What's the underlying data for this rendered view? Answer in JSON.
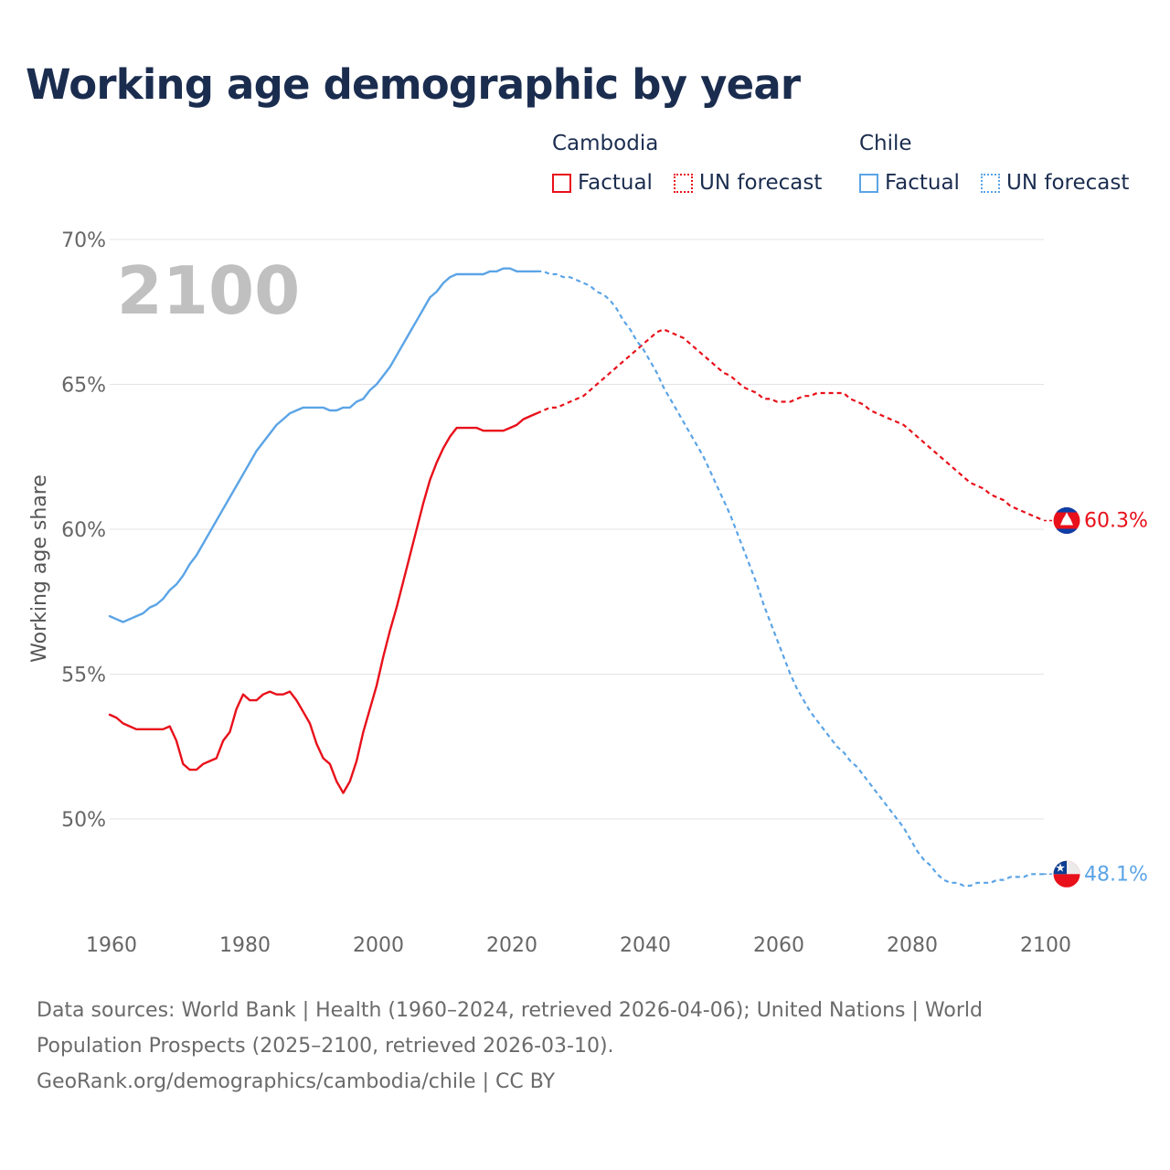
{
  "title": "Working age demographic by year",
  "legend": {
    "groups": [
      {
        "country": "Cambodia",
        "factual_label": "Factual",
        "forecast_label": "UN forecast",
        "color": "#e8101a"
      },
      {
        "country": "Chile",
        "factual_label": "Factual",
        "forecast_label": "UN forecast",
        "color": "#5ba4e6"
      }
    ]
  },
  "year_watermark": "2100",
  "source": {
    "line1": "Data sources: World Bank | Health (1960–2024, retrieved 2026-04-06); United Nations | World",
    "line2": "Population Prospects (2025–2100, retrieved 2026-03-10).",
    "line3": "GeoRank.org/demographics/cambodia/chile | CC BY"
  },
  "chart_data": {
    "type": "line",
    "title": "Working age demographic by year",
    "xlabel": "",
    "ylabel": "Working age share",
    "xlim": [
      1960,
      2100
    ],
    "ylim": [
      46.5,
      70
    ],
    "x_ticks": [
      1960,
      1980,
      2000,
      2020,
      2040,
      2060,
      2080,
      2100
    ],
    "x_tick_labels": [
      "1960",
      "1980",
      "2000",
      "2020",
      "2040",
      "2060",
      "2080",
      "2100"
    ],
    "y_ticks": [
      50,
      55,
      60,
      65,
      70
    ],
    "y_tick_labels": [
      "50%",
      "55%",
      "60%",
      "65%",
      "70%"
    ],
    "grid": true,
    "factual_end_year": 2024,
    "series": [
      {
        "name": "Cambodia",
        "color": "#e8101a",
        "end_label": "60.3%",
        "points": [
          [
            1960,
            53.6
          ],
          [
            1961,
            53.5
          ],
          [
            1962,
            53.3
          ],
          [
            1963,
            53.2
          ],
          [
            1964,
            53.1
          ],
          [
            1965,
            53.1
          ],
          [
            1966,
            53.1
          ],
          [
            1967,
            53.1
          ],
          [
            1968,
            53.1
          ],
          [
            1969,
            53.2
          ],
          [
            1970,
            52.7
          ],
          [
            1971,
            51.9
          ],
          [
            1972,
            51.7
          ],
          [
            1973,
            51.7
          ],
          [
            1974,
            51.9
          ],
          [
            1975,
            52.0
          ],
          [
            1976,
            52.1
          ],
          [
            1977,
            52.7
          ],
          [
            1978,
            53.0
          ],
          [
            1979,
            53.8
          ],
          [
            1980,
            54.3
          ],
          [
            1981,
            54.1
          ],
          [
            1982,
            54.1
          ],
          [
            1983,
            54.3
          ],
          [
            1984,
            54.4
          ],
          [
            1985,
            54.3
          ],
          [
            1986,
            54.3
          ],
          [
            1987,
            54.4
          ],
          [
            1988,
            54.1
          ],
          [
            1989,
            53.7
          ],
          [
            1990,
            53.3
          ],
          [
            1991,
            52.6
          ],
          [
            1992,
            52.1
          ],
          [
            1993,
            51.9
          ],
          [
            1994,
            51.3
          ],
          [
            1995,
            50.9
          ],
          [
            1996,
            51.3
          ],
          [
            1997,
            52.0
          ],
          [
            1998,
            53.0
          ],
          [
            1999,
            53.8
          ],
          [
            2000,
            54.6
          ],
          [
            2001,
            55.6
          ],
          [
            2002,
            56.5
          ],
          [
            2003,
            57.3
          ],
          [
            2004,
            58.2
          ],
          [
            2005,
            59.1
          ],
          [
            2006,
            60.0
          ],
          [
            2007,
            60.9
          ],
          [
            2008,
            61.7
          ],
          [
            2009,
            62.3
          ],
          [
            2010,
            62.8
          ],
          [
            2011,
            63.2
          ],
          [
            2012,
            63.5
          ],
          [
            2013,
            63.5
          ],
          [
            2014,
            63.5
          ],
          [
            2015,
            63.5
          ],
          [
            2016,
            63.4
          ],
          [
            2017,
            63.4
          ],
          [
            2018,
            63.4
          ],
          [
            2019,
            63.4
          ],
          [
            2020,
            63.5
          ],
          [
            2021,
            63.6
          ],
          [
            2022,
            63.8
          ],
          [
            2023,
            63.9
          ],
          [
            2024,
            64.0
          ],
          [
            2025,
            64.1
          ],
          [
            2026,
            64.2
          ],
          [
            2027,
            64.2
          ],
          [
            2028,
            64.3
          ],
          [
            2029,
            64.4
          ],
          [
            2030,
            64.5
          ],
          [
            2031,
            64.6
          ],
          [
            2032,
            64.8
          ],
          [
            2033,
            65.0
          ],
          [
            2034,
            65.2
          ],
          [
            2035,
            65.4
          ],
          [
            2036,
            65.6
          ],
          [
            2037,
            65.8
          ],
          [
            2038,
            66.0
          ],
          [
            2039,
            66.2
          ],
          [
            2040,
            66.4
          ],
          [
            2041,
            66.6
          ],
          [
            2042,
            66.8
          ],
          [
            2043,
            66.9
          ],
          [
            2044,
            66.8
          ],
          [
            2045,
            66.7
          ],
          [
            2046,
            66.6
          ],
          [
            2047,
            66.4
          ],
          [
            2048,
            66.2
          ],
          [
            2049,
            66.0
          ],
          [
            2050,
            65.8
          ],
          [
            2051,
            65.6
          ],
          [
            2052,
            65.4
          ],
          [
            2053,
            65.3
          ],
          [
            2054,
            65.1
          ],
          [
            2055,
            64.9
          ],
          [
            2056,
            64.8
          ],
          [
            2057,
            64.7
          ],
          [
            2058,
            64.5
          ],
          [
            2059,
            64.5
          ],
          [
            2060,
            64.4
          ],
          [
            2061,
            64.4
          ],
          [
            2062,
            64.4
          ],
          [
            2063,
            64.5
          ],
          [
            2064,
            64.6
          ],
          [
            2065,
            64.6
          ],
          [
            2066,
            64.7
          ],
          [
            2067,
            64.7
          ],
          [
            2068,
            64.7
          ],
          [
            2069,
            64.7
          ],
          [
            2070,
            64.7
          ],
          [
            2071,
            64.5
          ],
          [
            2072,
            64.4
          ],
          [
            2073,
            64.3
          ],
          [
            2074,
            64.1
          ],
          [
            2075,
            64.0
          ],
          [
            2076,
            63.9
          ],
          [
            2077,
            63.8
          ],
          [
            2078,
            63.7
          ],
          [
            2079,
            63.6
          ],
          [
            2080,
            63.4
          ],
          [
            2081,
            63.2
          ],
          [
            2082,
            63.0
          ],
          [
            2083,
            62.8
          ],
          [
            2084,
            62.6
          ],
          [
            2085,
            62.4
          ],
          [
            2086,
            62.2
          ],
          [
            2087,
            62.0
          ],
          [
            2088,
            61.8
          ],
          [
            2089,
            61.6
          ],
          [
            2090,
            61.5
          ],
          [
            2091,
            61.4
          ],
          [
            2092,
            61.2
          ],
          [
            2093,
            61.1
          ],
          [
            2094,
            61.0
          ],
          [
            2095,
            60.8
          ],
          [
            2096,
            60.7
          ],
          [
            2097,
            60.6
          ],
          [
            2098,
            60.5
          ],
          [
            2099,
            60.4
          ],
          [
            2100,
            60.3
          ]
        ]
      },
      {
        "name": "Chile",
        "color": "#5ba4e6",
        "end_label": "48.1%",
        "points": [
          [
            1960,
            57.0
          ],
          [
            1961,
            56.9
          ],
          [
            1962,
            56.8
          ],
          [
            1963,
            56.9
          ],
          [
            1964,
            57.0
          ],
          [
            1965,
            57.1
          ],
          [
            1966,
            57.3
          ],
          [
            1967,
            57.4
          ],
          [
            1968,
            57.6
          ],
          [
            1969,
            57.9
          ],
          [
            1970,
            58.1
          ],
          [
            1971,
            58.4
          ],
          [
            1972,
            58.8
          ],
          [
            1973,
            59.1
          ],
          [
            1974,
            59.5
          ],
          [
            1975,
            59.9
          ],
          [
            1976,
            60.3
          ],
          [
            1977,
            60.7
          ],
          [
            1978,
            61.1
          ],
          [
            1979,
            61.5
          ],
          [
            1980,
            61.9
          ],
          [
            1981,
            62.3
          ],
          [
            1982,
            62.7
          ],
          [
            1983,
            63.0
          ],
          [
            1984,
            63.3
          ],
          [
            1985,
            63.6
          ],
          [
            1986,
            63.8
          ],
          [
            1987,
            64.0
          ],
          [
            1988,
            64.1
          ],
          [
            1989,
            64.2
          ],
          [
            1990,
            64.2
          ],
          [
            1991,
            64.2
          ],
          [
            1992,
            64.2
          ],
          [
            1993,
            64.1
          ],
          [
            1994,
            64.1
          ],
          [
            1995,
            64.2
          ],
          [
            1996,
            64.2
          ],
          [
            1997,
            64.4
          ],
          [
            1998,
            64.5
          ],
          [
            1999,
            64.8
          ],
          [
            2000,
            65.0
          ],
          [
            2001,
            65.3
          ],
          [
            2002,
            65.6
          ],
          [
            2003,
            66.0
          ],
          [
            2004,
            66.4
          ],
          [
            2005,
            66.8
          ],
          [
            2006,
            67.2
          ],
          [
            2007,
            67.6
          ],
          [
            2008,
            68.0
          ],
          [
            2009,
            68.2
          ],
          [
            2010,
            68.5
          ],
          [
            2011,
            68.7
          ],
          [
            2012,
            68.8
          ],
          [
            2013,
            68.8
          ],
          [
            2014,
            68.8
          ],
          [
            2015,
            68.8
          ],
          [
            2016,
            68.8
          ],
          [
            2017,
            68.9
          ],
          [
            2018,
            68.9
          ],
          [
            2019,
            69.0
          ],
          [
            2020,
            69.0
          ],
          [
            2021,
            68.9
          ],
          [
            2022,
            68.9
          ],
          [
            2023,
            68.9
          ],
          [
            2024,
            68.9
          ],
          [
            2025,
            68.9
          ],
          [
            2026,
            68.8
          ],
          [
            2027,
            68.8
          ],
          [
            2028,
            68.7
          ],
          [
            2029,
            68.7
          ],
          [
            2030,
            68.6
          ],
          [
            2031,
            68.5
          ],
          [
            2032,
            68.4
          ],
          [
            2033,
            68.2
          ],
          [
            2034,
            68.1
          ],
          [
            2035,
            67.9
          ],
          [
            2036,
            67.6
          ],
          [
            2037,
            67.2
          ],
          [
            2038,
            66.9
          ],
          [
            2039,
            66.5
          ],
          [
            2040,
            66.2
          ],
          [
            2041,
            65.8
          ],
          [
            2042,
            65.4
          ],
          [
            2043,
            64.9
          ],
          [
            2044,
            64.5
          ],
          [
            2045,
            64.1
          ],
          [
            2046,
            63.7
          ],
          [
            2047,
            63.3
          ],
          [
            2048,
            62.9
          ],
          [
            2049,
            62.5
          ],
          [
            2050,
            62.0
          ],
          [
            2051,
            61.5
          ],
          [
            2052,
            61.0
          ],
          [
            2053,
            60.5
          ],
          [
            2054,
            59.9
          ],
          [
            2055,
            59.3
          ],
          [
            2056,
            58.7
          ],
          [
            2057,
            58.1
          ],
          [
            2058,
            57.4
          ],
          [
            2059,
            56.8
          ],
          [
            2060,
            56.2
          ],
          [
            2061,
            55.6
          ],
          [
            2062,
            55.0
          ],
          [
            2063,
            54.5
          ],
          [
            2064,
            54.1
          ],
          [
            2065,
            53.7
          ],
          [
            2066,
            53.4
          ],
          [
            2067,
            53.1
          ],
          [
            2068,
            52.8
          ],
          [
            2069,
            52.5
          ],
          [
            2070,
            52.3
          ],
          [
            2071,
            52.0
          ],
          [
            2072,
            51.8
          ],
          [
            2073,
            51.5
          ],
          [
            2074,
            51.2
          ],
          [
            2075,
            50.9
          ],
          [
            2076,
            50.6
          ],
          [
            2077,
            50.3
          ],
          [
            2078,
            50.0
          ],
          [
            2079,
            49.7
          ],
          [
            2080,
            49.3
          ],
          [
            2081,
            48.9
          ],
          [
            2082,
            48.6
          ],
          [
            2083,
            48.4
          ],
          [
            2084,
            48.1
          ],
          [
            2085,
            47.9
          ],
          [
            2086,
            47.8
          ],
          [
            2087,
            47.8
          ],
          [
            2088,
            47.7
          ],
          [
            2089,
            47.7
          ],
          [
            2090,
            47.8
          ],
          [
            2091,
            47.8
          ],
          [
            2092,
            47.8
          ],
          [
            2093,
            47.9
          ],
          [
            2094,
            47.9
          ],
          [
            2095,
            48.0
          ],
          [
            2096,
            48.0
          ],
          [
            2097,
            48.0
          ],
          [
            2098,
            48.1
          ],
          [
            2099,
            48.1
          ],
          [
            2100,
            48.1
          ]
        ]
      }
    ]
  }
}
